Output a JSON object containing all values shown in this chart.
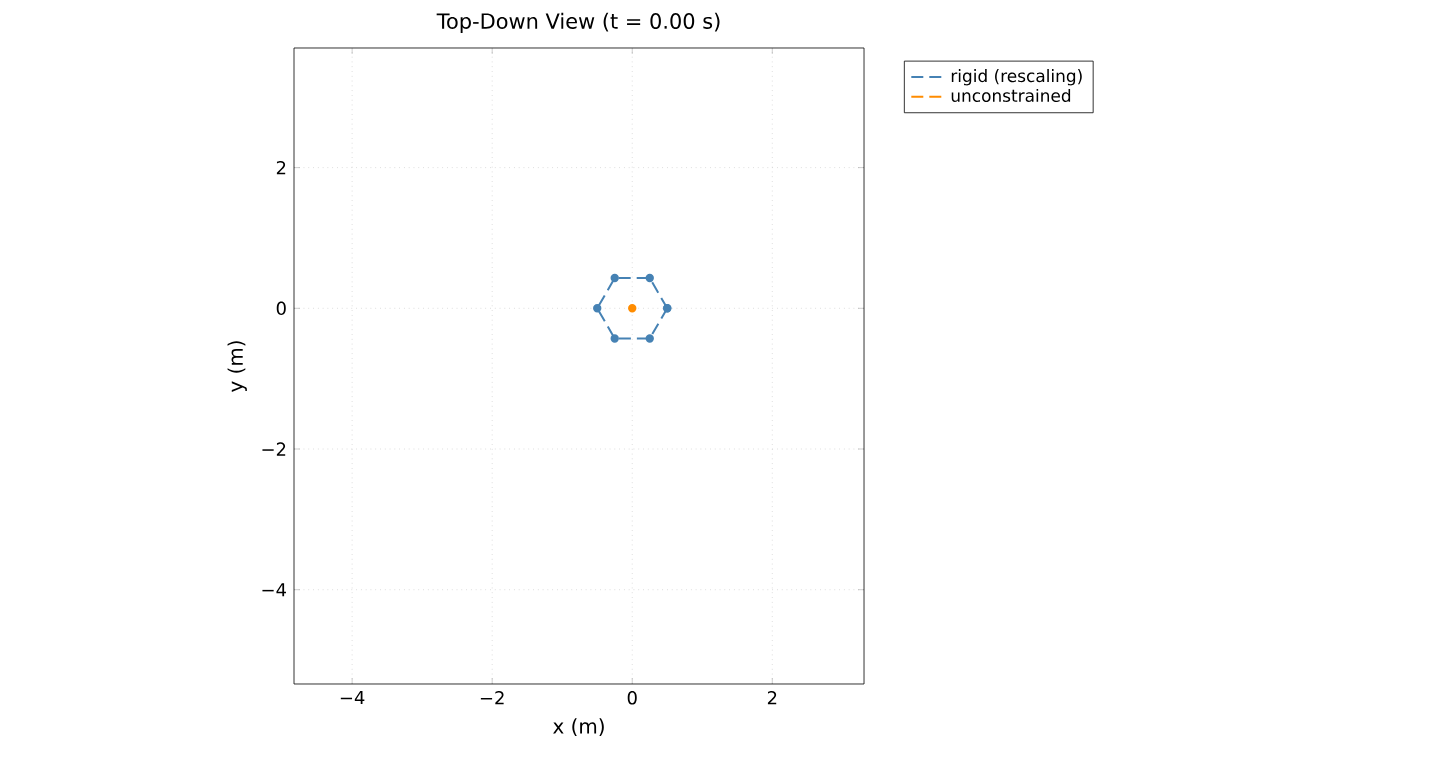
{
  "chart_data": {
    "type": "scatter",
    "title": "Top-Down View (t = 0.00 s)",
    "xlabel": "x (m)",
    "ylabel": "y (m)",
    "xlim": [
      -4.83,
      3.31
    ],
    "ylim": [
      -5.34,
      3.7
    ],
    "xticks": [
      {
        "value": -4,
        "label": "−4"
      },
      {
        "value": -2,
        "label": "−2"
      },
      {
        "value": 0,
        "label": "0"
      },
      {
        "value": 2,
        "label": "2"
      }
    ],
    "yticks": [
      {
        "value": -4,
        "label": "−4"
      },
      {
        "value": -2,
        "label": "−2"
      },
      {
        "value": 0,
        "label": "0"
      },
      {
        "value": 2,
        "label": "2"
      }
    ],
    "grid": true,
    "legend": "top right",
    "marker": "circle",
    "line_style": "dashed",
    "series": [
      {
        "name": "rigid (rescaling)",
        "color": "#4682b4",
        "x": [
          0.5,
          0.25,
          -0.25,
          -0.5,
          -0.25,
          0.25,
          0.5
        ],
        "values": [
          0,
          0.43,
          0.43,
          0,
          -0.43,
          -0.43,
          0
        ]
      },
      {
        "name": "unconstrained",
        "color": "#ff8c00",
        "x": [
          0
        ],
        "values": [
          0
        ]
      }
    ]
  }
}
